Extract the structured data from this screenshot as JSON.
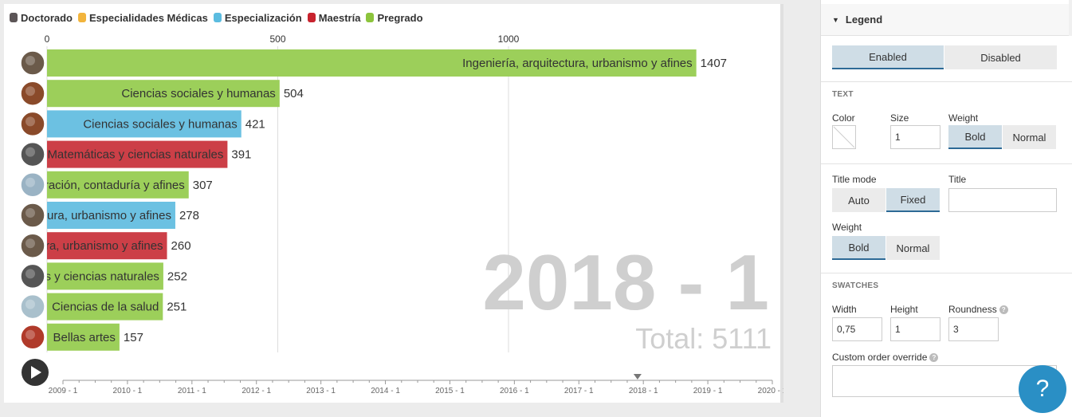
{
  "legend": [
    {
      "label": "Doctorado",
      "color": "#5c5557"
    },
    {
      "label": "Especialidades Médicas",
      "color": "#f2b43c"
    },
    {
      "label": "Especialización",
      "color": "#5bbce0"
    },
    {
      "label": "Maestría",
      "color": "#c8232e"
    },
    {
      "label": "Pregrado",
      "color": "#8cc43c"
    }
  ],
  "axis_ticks": [
    "0",
    "500",
    "1000"
  ],
  "big_period": "2018 - 1",
  "total_text": "Total: 5111",
  "timeline_labels": [
    "2009 - 1",
    "2010 - 1",
    "2011 - 1",
    "2012 - 1",
    "2013 - 1",
    "2014 - 1",
    "2015 - 1",
    "2016 - 1",
    "2017 - 1",
    "2018 - 1",
    "2019 - 1",
    "2020 - 1"
  ],
  "timeline_position": 0.81,
  "chart_data": {
    "type": "bar",
    "orientation": "horizontal",
    "xlim": [
      0,
      1500
    ],
    "bars": [
      {
        "label": "Ingeniería, arquitectura, urbanismo y afines",
        "value": 1407,
        "level": "Pregrado",
        "color": "#9ccf5a"
      },
      {
        "label": "Ciencias sociales y humanas",
        "value": 504,
        "level": "Pregrado",
        "color": "#9ccf5a"
      },
      {
        "label": "Ciencias sociales y humanas",
        "value": 421,
        "level": "Especialización",
        "color": "#6cc1e2"
      },
      {
        "label": "Matemáticas y ciencias naturales",
        "value": 391,
        "level": "Maestría",
        "color": "#cc3f47"
      },
      {
        "label": "Economía, administración, contaduría y afines",
        "value": 307,
        "level": "Pregrado",
        "color": "#9ccf5a"
      },
      {
        "label": "Ingeniería, arquitectura, urbanismo y afines",
        "value": 278,
        "level": "Especialización",
        "color": "#6cc1e2"
      },
      {
        "label": "Ingeniería, arquitectura, urbanismo y afines",
        "value": 260,
        "level": "Maestría",
        "color": "#cc3f47"
      },
      {
        "label": "Matemáticas y ciencias naturales",
        "value": 252,
        "level": "Pregrado",
        "color": "#9ccf5a"
      },
      {
        "label": "Ciencias de la salud",
        "value": 251,
        "level": "Pregrado",
        "color": "#9ccf5a"
      },
      {
        "label": "Bellas artes",
        "value": 157,
        "level": "Pregrado",
        "color": "#9ccf5a"
      }
    ],
    "avatar_colors": [
      "#6b5a4a",
      "#8a4a2a",
      "#8a4a2a",
      "#555555",
      "#9ab3c4",
      "#6b5a4a",
      "#6b5a4a",
      "#555555",
      "#a9c0cc",
      "#b03a2a"
    ]
  },
  "panel": {
    "section_title": "Legend",
    "legend_toggle": {
      "enabled": "Enabled",
      "disabled": "Disabled"
    },
    "text_section": "TEXT",
    "color_label": "Color",
    "size_label": "Size",
    "size_value": "1",
    "weight_label": "Weight",
    "weight_bold": "Bold",
    "weight_normal": "Normal",
    "title_mode_label": "Title mode",
    "title_mode_auto": "Auto",
    "title_mode_fixed": "Fixed",
    "title_label": "Title",
    "title_value": "",
    "weight2_label": "Weight",
    "weight2_bold": "Bold",
    "weight2_normal": "Normal",
    "swatches_section": "SWATCHES",
    "width_label": "Width",
    "width_value": "0,75",
    "height_label": "Height",
    "height_value": "1",
    "roundness_label": "Roundness",
    "roundness_value": "3",
    "custom_order_label": "Custom order override",
    "custom_order_value": ""
  },
  "help_label": "?"
}
